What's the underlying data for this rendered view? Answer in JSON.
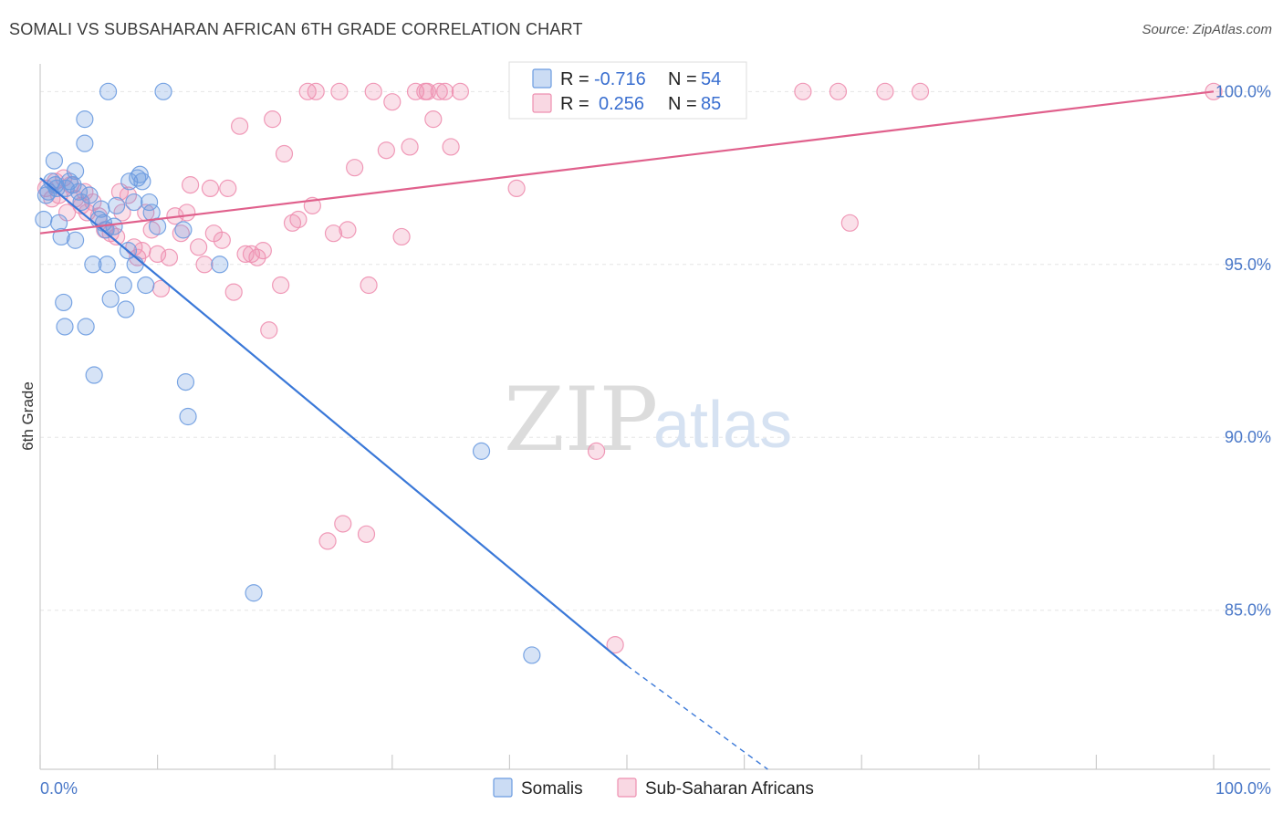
{
  "header": {
    "title": "SOMALI VS SUBSAHARAN AFRICAN 6TH GRADE CORRELATION CHART",
    "source": "Source: ZipAtlas.com"
  },
  "watermark": {
    "zip": "ZIP",
    "atlas": "atlas"
  },
  "colors": {
    "somali": "#6b9be0",
    "somali_line": "#3a78d8",
    "subsaharan": "#ee8fb0",
    "subsaharan_line": "#e0608c",
    "tick_text": "#4a78c8"
  },
  "legend": {
    "rows": [
      {
        "r_label": "R = ",
        "r_value": "-0.716",
        "n_label": "N = ",
        "n_value": "54"
      },
      {
        "r_label": "R = ",
        "r_value": "0.256",
        "n_label": "N = ",
        "n_value": "85"
      }
    ]
  },
  "bottom_legend": [
    "Somalis",
    "Sub-Saharan Africans"
  ],
  "chart_data": {
    "type": "scatter",
    "title": "SOMALI VS SUBSAHARAN AFRICAN 6TH GRADE CORRELATION CHART",
    "xlabel": "",
    "ylabel": "6th Grade",
    "xlim": [
      0,
      100
    ],
    "ylim": [
      80.4,
      100.8
    ],
    "x_tick_labels": [
      "0.0%",
      "100.0%"
    ],
    "y_ticks": [
      85,
      90,
      95,
      100
    ],
    "y_tick_labels": [
      "85.0%",
      "90.0%",
      "95.0%",
      "100.0%"
    ],
    "grid": true,
    "legend_position": "top-center",
    "series": [
      {
        "name": "Somalis",
        "r": -0.716,
        "n": 54,
        "trend": {
          "x0": 0,
          "y0": 97.5,
          "x1": 50,
          "y1": 83.4,
          "dashed_to_x": 62,
          "dashed_to_y": 80.4
        },
        "points": [
          [
            0.3,
            96.3
          ],
          [
            0.5,
            97.0
          ],
          [
            0.7,
            97.1
          ],
          [
            1.0,
            97.4
          ],
          [
            1.2,
            98.0
          ],
          [
            1.4,
            97.2
          ],
          [
            1.6,
            96.2
          ],
          [
            1.8,
            95.8
          ],
          [
            2.0,
            93.9
          ],
          [
            2.2,
            97.2
          ],
          [
            2.5,
            97.4
          ],
          [
            2.8,
            97.3
          ],
          [
            3.0,
            95.7
          ],
          [
            3.0,
            97.7
          ],
          [
            3.3,
            97.1
          ],
          [
            3.5,
            96.8
          ],
          [
            3.8,
            99.2
          ],
          [
            3.8,
            98.5
          ],
          [
            4.2,
            97.0
          ],
          [
            4.5,
            95.0
          ],
          [
            4.6,
            91.8
          ],
          [
            5.0,
            96.3
          ],
          [
            5.2,
            96.6
          ],
          [
            5.4,
            96.2
          ],
          [
            5.6,
            96.0
          ],
          [
            5.7,
            95.0
          ],
          [
            5.8,
            100.0
          ],
          [
            6.0,
            94.0
          ],
          [
            6.3,
            96.1
          ],
          [
            6.5,
            96.7
          ],
          [
            7.1,
            94.4
          ],
          [
            7.3,
            93.7
          ],
          [
            7.5,
            95.4
          ],
          [
            7.6,
            97.4
          ],
          [
            8.0,
            96.8
          ],
          [
            8.1,
            95.0
          ],
          [
            8.3,
            97.5
          ],
          [
            8.5,
            97.6
          ],
          [
            8.7,
            97.4
          ],
          [
            9.0,
            94.4
          ],
          [
            9.3,
            96.8
          ],
          [
            9.5,
            96.5
          ],
          [
            10.0,
            96.1
          ],
          [
            10.5,
            100.0
          ],
          [
            12.2,
            96.0
          ],
          [
            12.4,
            91.6
          ],
          [
            12.6,
            90.6
          ],
          [
            15.3,
            95.0
          ],
          [
            18.2,
            85.5
          ],
          [
            2.1,
            93.2
          ],
          [
            3.9,
            93.2
          ],
          [
            37.6,
            89.6
          ],
          [
            41.9,
            83.7
          ],
          [
            1.3,
            97.3
          ]
        ]
      },
      {
        "name": "Sub-Saharan Africans",
        "r": 0.256,
        "n": 85,
        "trend": {
          "x0": 0,
          "y0": 95.9,
          "x1": 100,
          "y1": 100.0
        },
        "points": [
          [
            0.5,
            97.2
          ],
          [
            1.0,
            96.9
          ],
          [
            1.3,
            97.4
          ],
          [
            1.6,
            97.0
          ],
          [
            2.0,
            97.5
          ],
          [
            2.3,
            96.5
          ],
          [
            2.6,
            97.3
          ],
          [
            3.0,
            96.9
          ],
          [
            3.5,
            96.7
          ],
          [
            3.8,
            97.1
          ],
          [
            4.0,
            96.5
          ],
          [
            4.5,
            96.8
          ],
          [
            5.0,
            96.4
          ],
          [
            5.5,
            96.0
          ],
          [
            6.0,
            95.9
          ],
          [
            6.5,
            95.8
          ],
          [
            6.8,
            97.1
          ],
          [
            7.0,
            96.5
          ],
          [
            7.5,
            97.0
          ],
          [
            8.0,
            95.5
          ],
          [
            8.3,
            95.2
          ],
          [
            8.7,
            95.4
          ],
          [
            9.0,
            96.5
          ],
          [
            9.5,
            96.0
          ],
          [
            10.0,
            95.3
          ],
          [
            10.3,
            94.3
          ],
          [
            11.0,
            95.2
          ],
          [
            11.5,
            96.4
          ],
          [
            12.0,
            95.9
          ],
          [
            12.5,
            96.5
          ],
          [
            12.8,
            97.3
          ],
          [
            13.5,
            95.5
          ],
          [
            14.0,
            95.0
          ],
          [
            14.5,
            97.2
          ],
          [
            14.8,
            95.9
          ],
          [
            15.5,
            95.7
          ],
          [
            16.0,
            97.2
          ],
          [
            16.5,
            94.2
          ],
          [
            17.0,
            99.0
          ],
          [
            17.5,
            95.3
          ],
          [
            18.0,
            95.3
          ],
          [
            18.5,
            95.2
          ],
          [
            19.0,
            95.4
          ],
          [
            19.5,
            93.1
          ],
          [
            19.8,
            99.2
          ],
          [
            20.5,
            94.4
          ],
          [
            20.8,
            98.2
          ],
          [
            21.5,
            96.2
          ],
          [
            22.0,
            96.3
          ],
          [
            22.8,
            100.0
          ],
          [
            23.2,
            96.7
          ],
          [
            23.5,
            100.0
          ],
          [
            24.5,
            87.0
          ],
          [
            25.0,
            95.9
          ],
          [
            25.5,
            100.0
          ],
          [
            25.8,
            87.5
          ],
          [
            26.2,
            96.0
          ],
          [
            26.8,
            97.8
          ],
          [
            27.8,
            87.2
          ],
          [
            28.0,
            94.4
          ],
          [
            28.4,
            100.0
          ],
          [
            29.5,
            98.3
          ],
          [
            30.0,
            99.7
          ],
          [
            30.8,
            95.8
          ],
          [
            31.5,
            98.4
          ],
          [
            32.0,
            100.0
          ],
          [
            32.8,
            100.0
          ],
          [
            33.5,
            99.2
          ],
          [
            34.5,
            100.0
          ],
          [
            35.0,
            98.4
          ],
          [
            35.8,
            100.0
          ],
          [
            40.6,
            97.2
          ],
          [
            42.0,
            100.0
          ],
          [
            47.4,
            89.6
          ],
          [
            49.0,
            84.0
          ],
          [
            56.0,
            100.0
          ],
          [
            65.0,
            100.0
          ],
          [
            68.0,
            100.0
          ],
          [
            69.0,
            96.2
          ],
          [
            72.0,
            100.0
          ],
          [
            75.0,
            100.0
          ],
          [
            100.0,
            100.0
          ],
          [
            33.0,
            100.0
          ],
          [
            44.0,
            100.0
          ],
          [
            34.0,
            100.0
          ]
        ]
      }
    ]
  }
}
